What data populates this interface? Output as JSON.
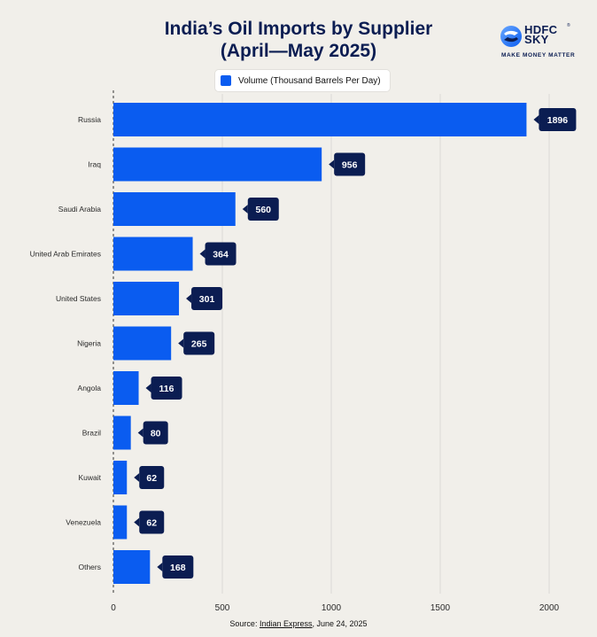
{
  "brand": {
    "name_line1": "HDFC",
    "name_line2": "SKY",
    "tagline": "MAKE MONEY MATTER",
    "registered": "®",
    "colors": {
      "primary": "#0b1d52",
      "accent": "#0a5cf0"
    }
  },
  "footer": {
    "source_prefix": "Source: ",
    "source_name": "Indian Express",
    "source_date": ", June 24, 2025"
  },
  "chart_data": {
    "type": "bar",
    "orientation": "horizontal",
    "title_line1": "India’s Oil Imports by Supplier",
    "title_line2": "(April—May 2025)",
    "legend": "Volume (Thousand Barrels Per Day)",
    "categories": [
      "Russia",
      "Iraq",
      "Saudi Arabia",
      "United Arab Emirates",
      "United States",
      "Nigeria",
      "Angola",
      "Brazil",
      "Kuwait",
      "Venezuela",
      "Others"
    ],
    "values": [
      1896,
      956,
      560,
      364,
      301,
      265,
      116,
      80,
      62,
      62,
      168
    ],
    "xticks": [
      0,
      500,
      1000,
      1500,
      2000
    ],
    "xlim": [
      0,
      2100
    ],
    "grid": true,
    "bar_color": "#0a5cf0",
    "label_bg": "#0b1d52"
  }
}
